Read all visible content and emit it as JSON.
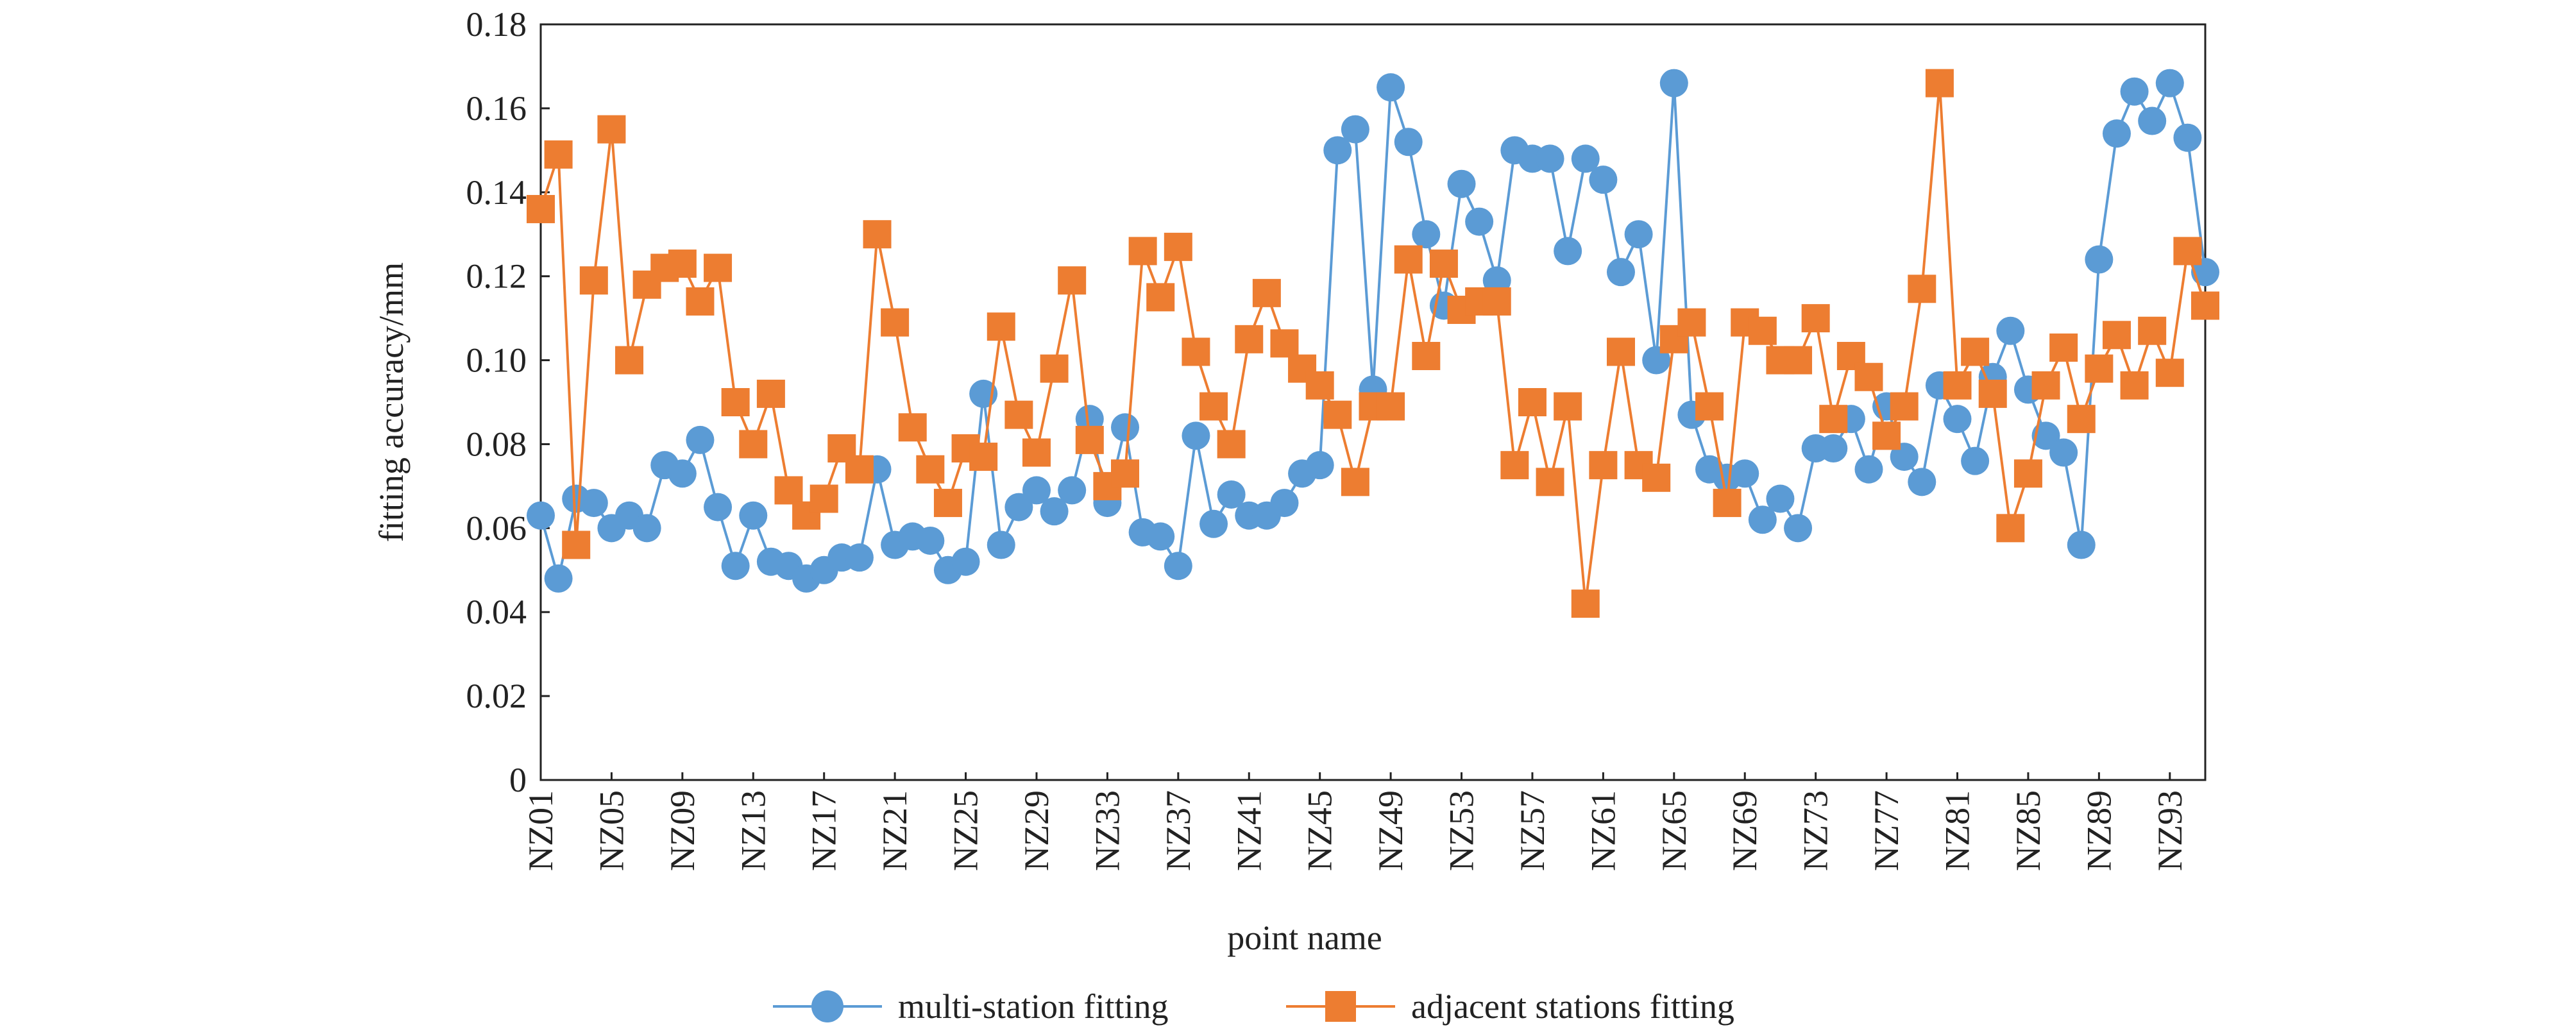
{
  "chart_data": {
    "type": "line",
    "xlabel": "point name",
    "ylabel": "fitting accuracy/mm",
    "ylim": [
      0,
      0.18
    ],
    "yticks": [
      0,
      0.02,
      0.04,
      0.06,
      0.08,
      0.1,
      0.12,
      0.14,
      0.16,
      0.18
    ],
    "ytick_labels": [
      "0",
      "0.02",
      "0.04",
      "0.06",
      "0.08",
      "0.10",
      "0.12",
      "0.14",
      "0.16",
      "0.18"
    ],
    "xtick_labels": [
      "NZ01",
      "NZ05",
      "NZ09",
      "NZ13",
      "NZ17",
      "NZ21",
      "NZ25",
      "NZ29",
      "NZ33",
      "NZ37",
      "NZ41",
      "NZ45",
      "NZ49",
      "NZ53",
      "NZ57",
      "NZ61",
      "NZ65",
      "NZ69",
      "NZ73",
      "NZ77",
      "NZ81",
      "NZ85",
      "NZ89",
      "NZ93"
    ],
    "grid": false,
    "legend_position": "bottom",
    "series": [
      {
        "name": "multi-station fitting",
        "color": "#5B9BD5",
        "marker": "circle",
        "values": [
          0.063,
          0.048,
          0.067,
          0.066,
          0.06,
          0.063,
          0.06,
          0.075,
          0.073,
          0.081,
          0.065,
          0.051,
          0.063,
          0.052,
          0.051,
          0.048,
          0.05,
          0.053,
          0.053,
          0.074,
          0.056,
          0.058,
          0.057,
          0.05,
          0.052,
          0.092,
          0.056,
          0.065,
          0.069,
          0.064,
          0.069,
          0.086,
          0.066,
          0.084,
          0.059,
          0.058,
          0.051,
          0.082,
          0.061,
          0.068,
          0.063,
          0.063,
          0.066,
          0.073,
          0.075,
          0.15,
          0.155,
          0.093,
          0.165,
          0.152,
          0.13,
          0.113,
          0.142,
          0.133,
          0.119,
          0.15,
          0.148,
          0.148,
          0.126,
          0.148,
          0.143,
          0.121,
          0.13,
          0.1,
          0.166,
          0.087,
          0.074,
          0.072,
          0.073,
          0.062,
          0.067,
          0.06,
          0.079,
          0.079,
          0.086,
          0.074,
          0.089,
          0.077,
          0.071,
          0.094,
          0.086,
          0.076,
          0.096,
          0.107,
          0.093,
          0.082,
          0.078,
          0.056,
          0.124,
          0.154,
          0.164,
          0.157,
          0.166,
          0.153,
          0.121
        ]
      },
      {
        "name": "adjacent stations fitting",
        "color": "#ED7D31",
        "marker": "square",
        "values": [
          0.136,
          0.149,
          0.056,
          0.119,
          0.155,
          0.1,
          0.118,
          0.122,
          0.123,
          0.114,
          0.122,
          0.09,
          0.08,
          0.092,
          0.069,
          0.063,
          0.067,
          0.079,
          0.074,
          0.13,
          0.109,
          0.084,
          0.074,
          0.066,
          0.079,
          0.077,
          0.108,
          0.087,
          0.078,
          0.098,
          0.119,
          0.081,
          0.07,
          0.073,
          0.126,
          0.115,
          0.127,
          0.102,
          0.089,
          0.08,
          0.105,
          0.116,
          0.104,
          0.098,
          0.094,
          0.087,
          0.071,
          0.089,
          0.089,
          0.124,
          0.101,
          0.123,
          0.112,
          0.114,
          0.114,
          0.075,
          0.09,
          0.071,
          0.089,
          0.042,
          0.075,
          0.102,
          0.075,
          0.072,
          0.105,
          0.109,
          0.089,
          0.066,
          0.109,
          0.107,
          0.1,
          0.1,
          0.11,
          0.086,
          0.101,
          0.096,
          0.082,
          0.089,
          0.117,
          0.166,
          0.094,
          0.102,
          0.092,
          0.06,
          0.073,
          0.094,
          0.103,
          0.086,
          0.098,
          0.106,
          0.094,
          0.107,
          0.097,
          0.126,
          0.113
        ]
      }
    ]
  }
}
